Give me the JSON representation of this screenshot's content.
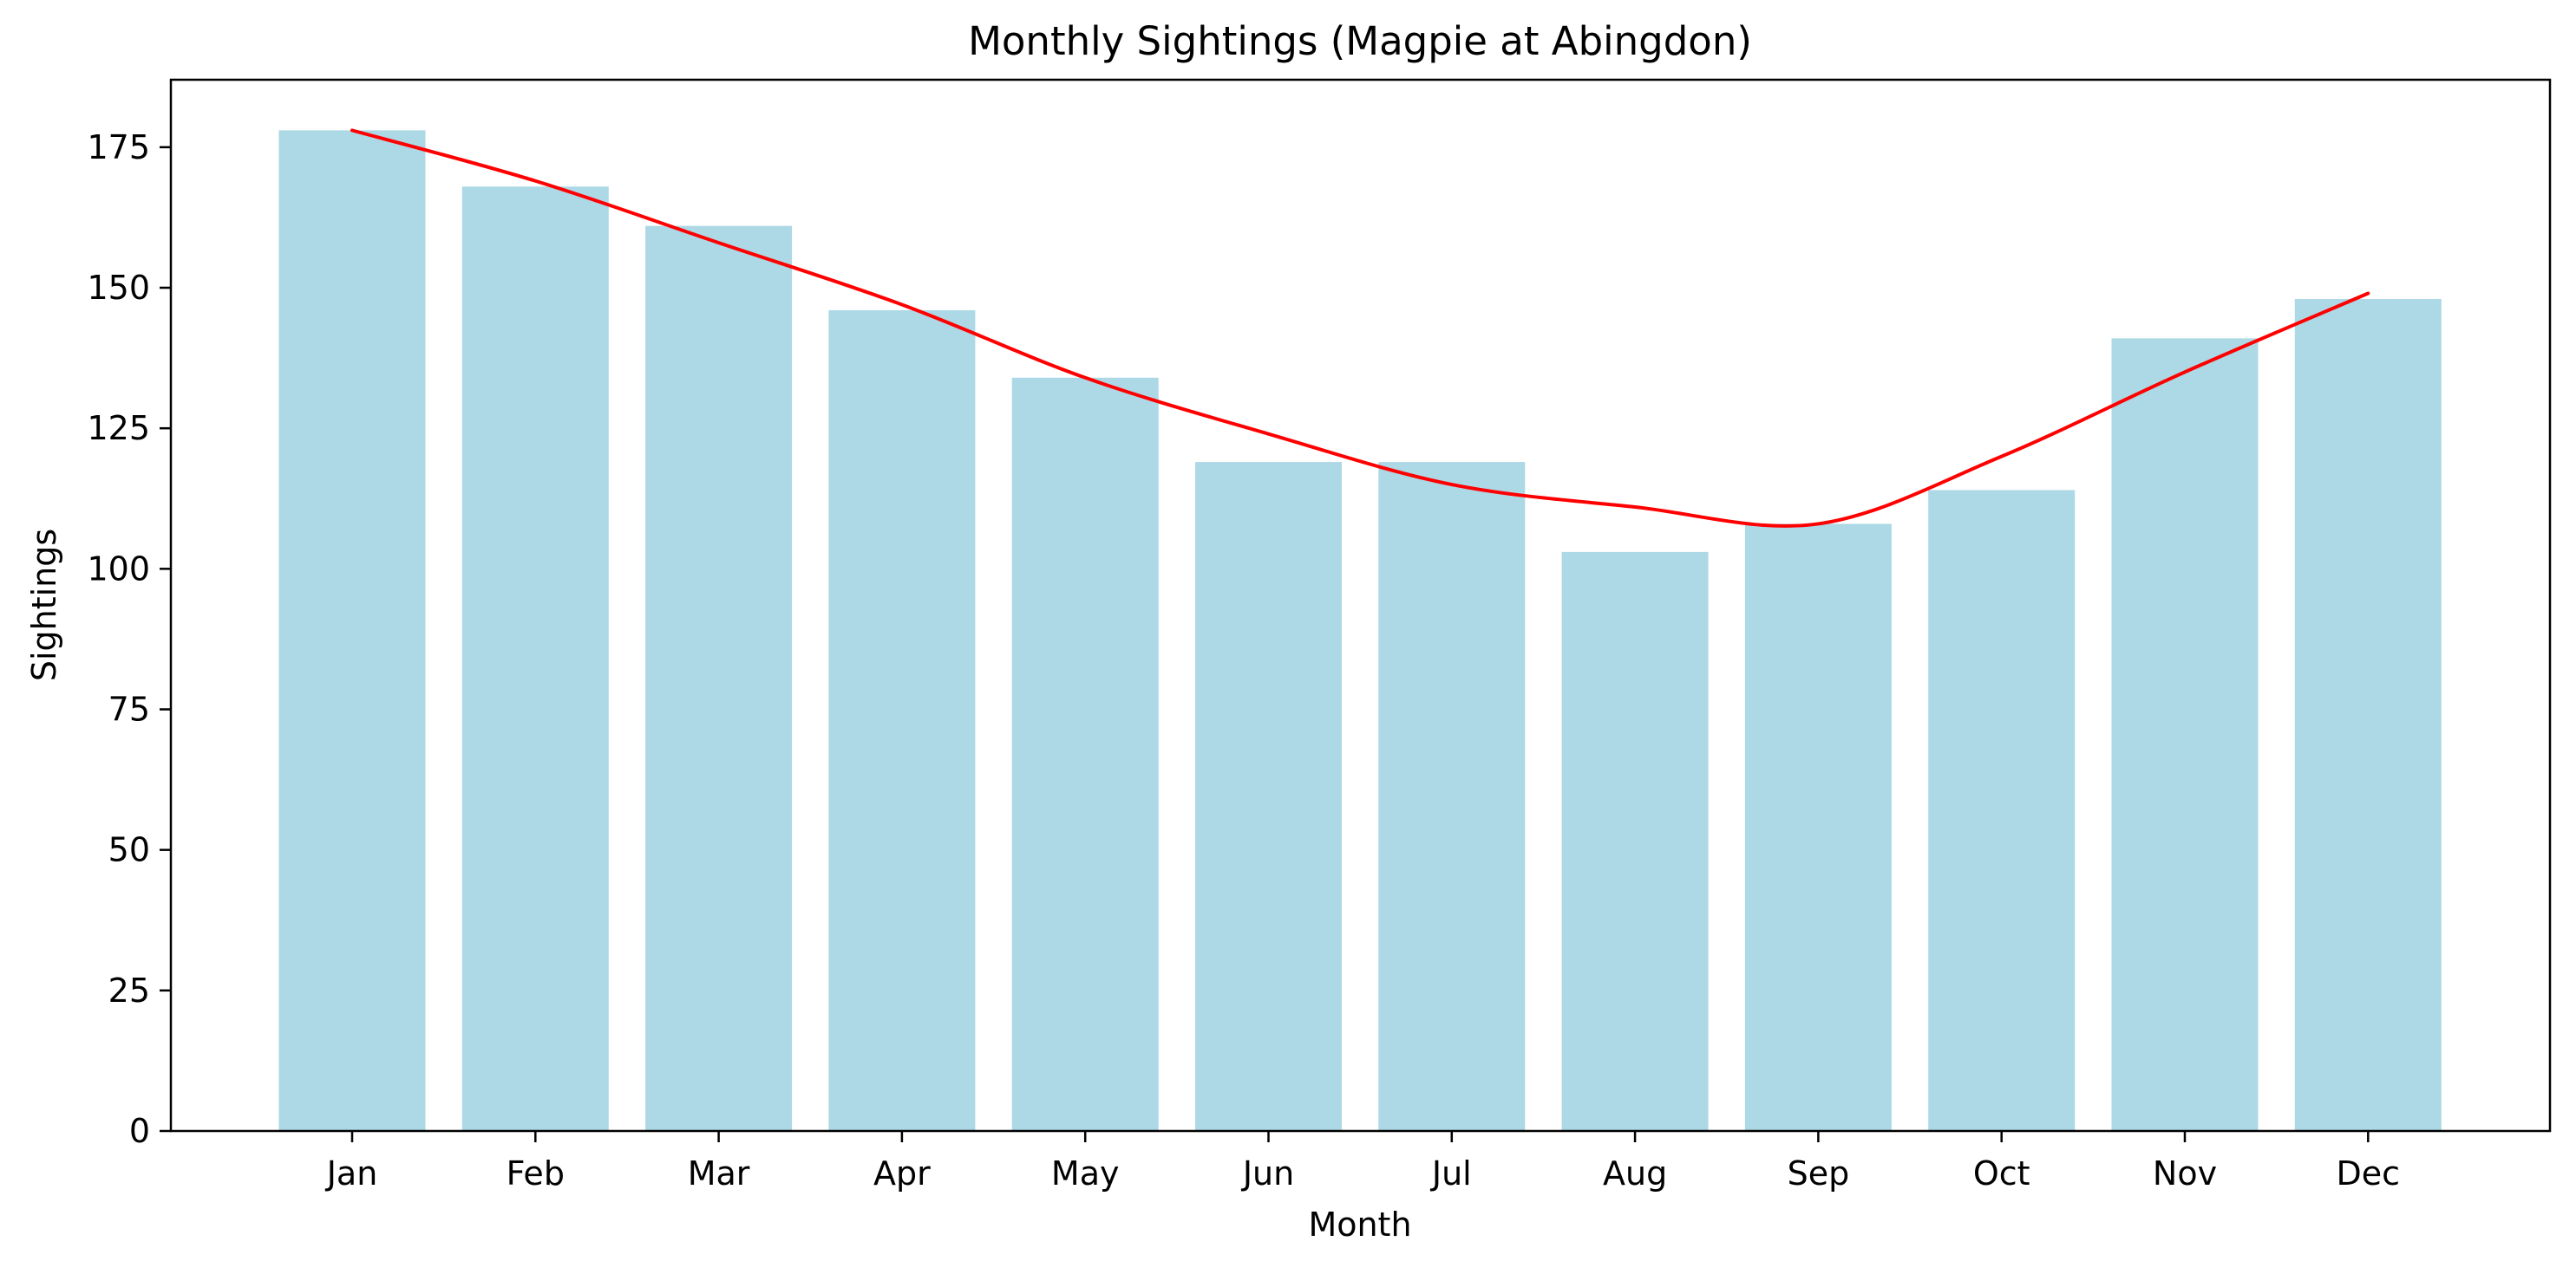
{
  "chart_data": {
    "type": "bar",
    "title": "Monthly Sightings (Magpie at Abingdon)",
    "xlabel": "Month",
    "ylabel": "Sightings",
    "categories": [
      "Jan",
      "Feb",
      "Mar",
      "Apr",
      "May",
      "Jun",
      "Jul",
      "Aug",
      "Sep",
      "Oct",
      "Nov",
      "Dec"
    ],
    "values": [
      178,
      168,
      161,
      146,
      134,
      119,
      119,
      103,
      108,
      114,
      141,
      148
    ],
    "trend_values": [
      178,
      169,
      158,
      147,
      134,
      124,
      115,
      111,
      108,
      120,
      135,
      149
    ],
    "ylim": [
      0,
      187
    ],
    "yticks": [
      0,
      25,
      50,
      75,
      100,
      125,
      150,
      175
    ],
    "grid": false,
    "legend": "none",
    "bar_color": "#add8e6",
    "line_color": "#ff0000"
  }
}
